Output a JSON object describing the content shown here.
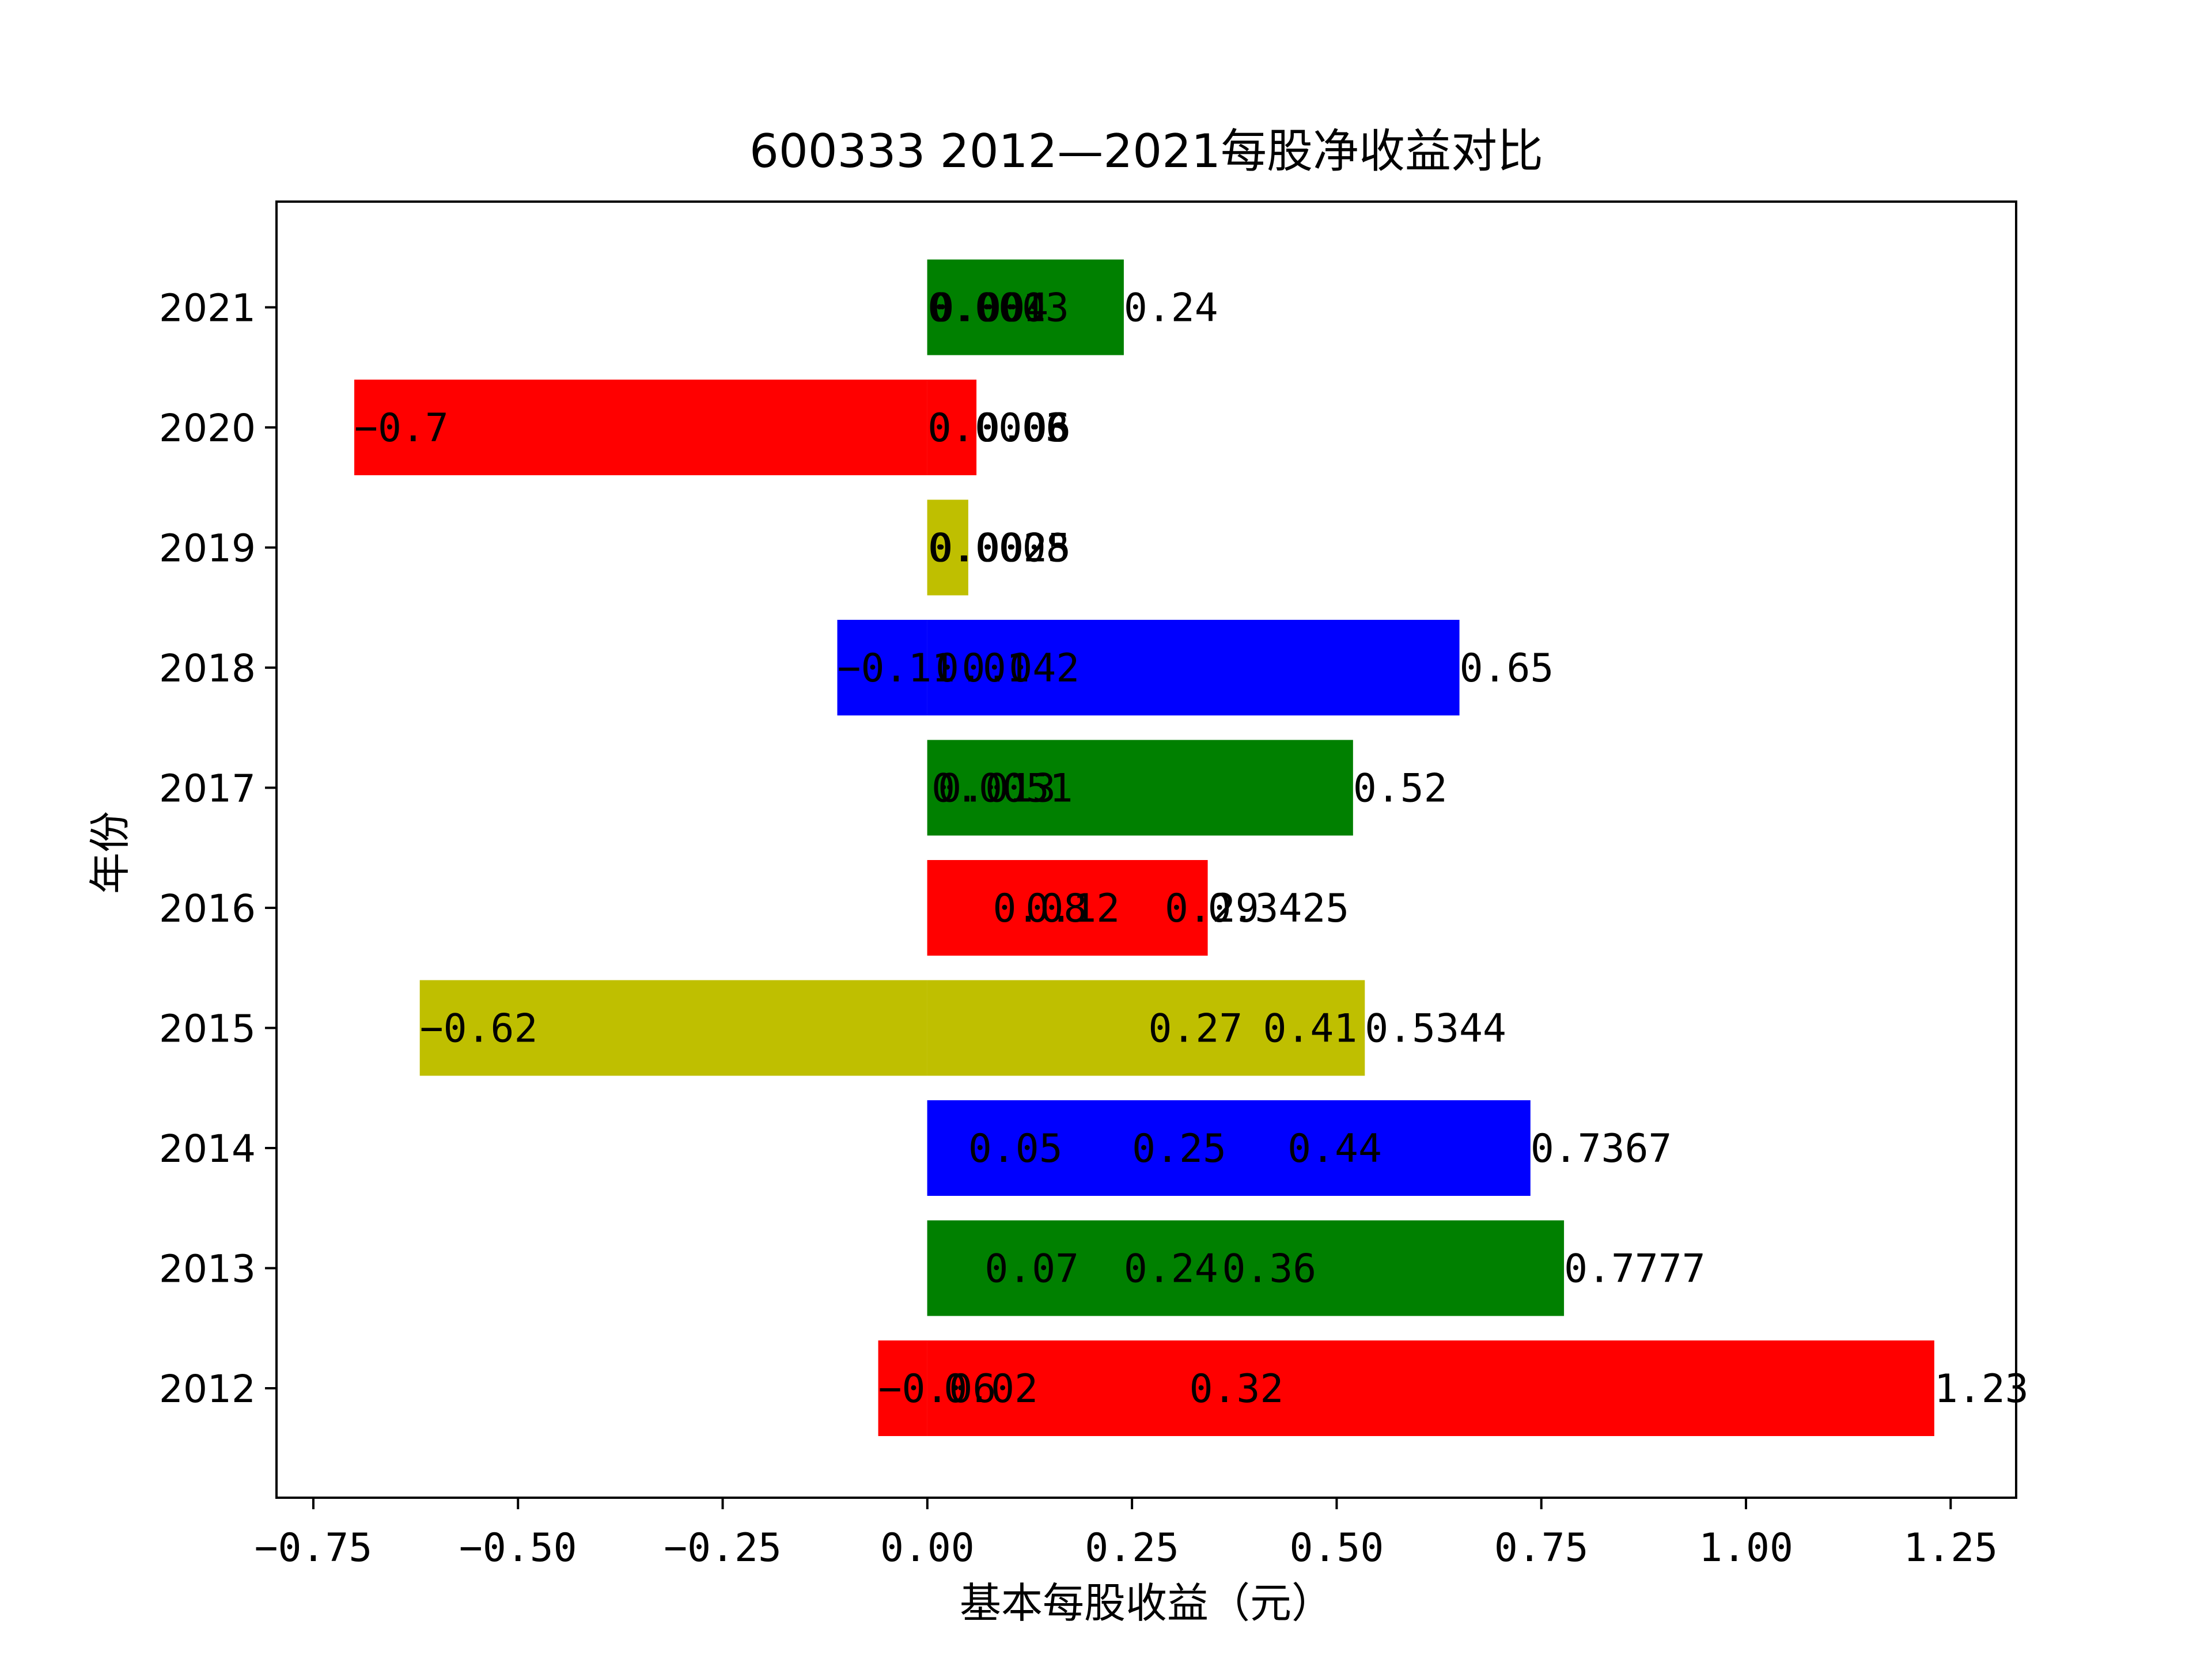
{
  "chart_data": {
    "type": "bar",
    "orientation": "horizontal",
    "stacking": "overlaid",
    "title": "600333 2012—2021每股净收益对比",
    "xlabel": "基本每股收益（元）",
    "ylabel": "年份",
    "xlim": [
      -0.795,
      1.33
    ],
    "xticks": [
      "−0.75",
      "−0.50",
      "−0.25",
      "0.00",
      "0.25",
      "0.50",
      "0.75",
      "1.00",
      "1.25"
    ],
    "xtick_values": [
      -0.75,
      -0.5,
      -0.25,
      0,
      0.25,
      0.5,
      0.75,
      1.0,
      1.25
    ],
    "grid": false,
    "legend": "none",
    "categories": [
      "2012",
      "2013",
      "2014",
      "2015",
      "2016",
      "2017",
      "2018",
      "2019",
      "2020",
      "2021"
    ],
    "bar_colors": {
      "2012": "#ff0000",
      "2013": "#008000",
      "2014": "#0000ff",
      "2015": "#bfbf00",
      "2016": "#ff0000",
      "2017": "#008000",
      "2018": "#0000ff",
      "2019": "#bfbf00",
      "2020": "#ff0000",
      "2021": "#008000"
    },
    "values": {
      "2012": [
        -0.06,
        0.02,
        0.32,
        1.23
      ],
      "2013": [
        0.07,
        0.24,
        0.36,
        0.7777
      ],
      "2014": [
        0.05,
        0.25,
        0.44,
        0.7367
      ],
      "2015": [
        -0.62,
        0.27,
        0.41,
        0.5344
      ],
      "2016": [
        0.08,
        0.12,
        0.29,
        0.3425
      ],
      "2017": [
        0.0051,
        0.013,
        0.52
      ],
      "2018": [
        -0.11,
        0.042,
        0.01,
        0.65
      ],
      "2019": [
        0.0008,
        0.002,
        0.0025,
        0.05
      ],
      "2020": [
        0.0003,
        0.0006,
        0.06,
        -0.7
      ],
      "2021": [
        0.0003,
        0.001,
        0.004,
        0.24
      ]
    },
    "value_labels": {
      "2012": [
        "−0.06",
        "0.02",
        "0.32",
        "1.23"
      ],
      "2013": [
        "0.07",
        "0.24",
        "0.36",
        "0.7777"
      ],
      "2014": [
        "0.05",
        "0.25",
        "0.44",
        "0.7367"
      ],
      "2015": [
        "−0.62",
        "0.27",
        "0.41",
        "0.5344"
      ],
      "2016": [
        "0.08",
        "0.12",
        "0.29",
        "0.3425"
      ],
      "2017": [
        "0.0051",
        "0.013",
        "0.52"
      ],
      "2018": [
        "−0.11",
        "0.042",
        "0.01",
        "0.65"
      ],
      "2019": [
        "0.0008",
        "0.002",
        "0.0025",
        ""
      ],
      "2020": [
        "0.0003",
        "0.0006",
        "0.06",
        "−0.7"
      ],
      "2021": [
        "0.0003",
        "0.001",
        "0.004",
        "0.24"
      ]
    }
  }
}
